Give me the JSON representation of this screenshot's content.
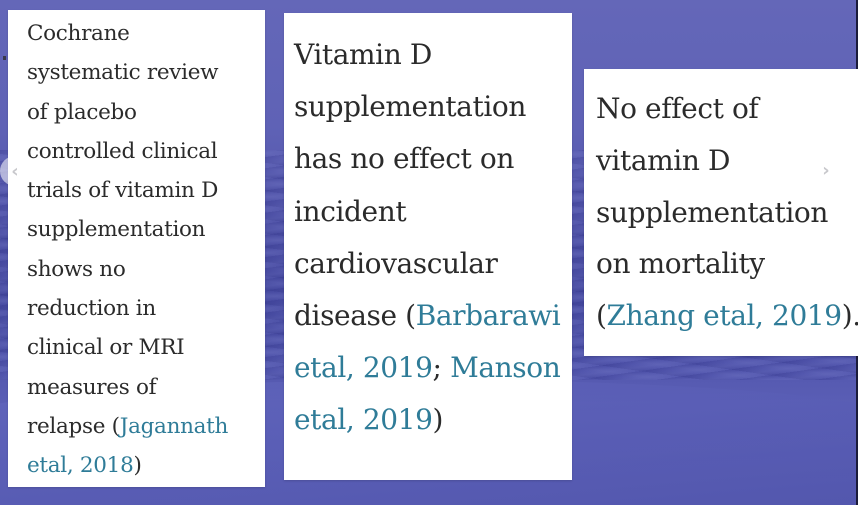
{
  "slides": {
    "cards": [
      {
        "lines": [
          "Cochrane",
          "systematic review",
          "of placebo",
          "controlled clinical",
          "trials of vitamin D",
          "supplementation",
          "shows no",
          "reduction in",
          "clinical or MRI",
          "measures of"
        ],
        "last_prefix": "relapse (",
        "citation_part1": "Jagannath",
        "citation_part2": "etal, 2018",
        "close": ")"
      },
      {
        "lines": [
          "Vitamin D",
          "supplementation",
          "has no effect on",
          "incident",
          "cardiovascular"
        ],
        "last_prefix": "disease (",
        "citation_1a": "Barbarawi",
        "citation_1b": "etal, 2019",
        "separator": "; ",
        "citation_2a": "Manson",
        "citation_2b": "etal, 2019",
        "close": ")"
      },
      {
        "lines": [
          "No effect of",
          "vitamin D",
          "supplementation",
          "on mortality"
        ],
        "open": "(",
        "citation": "Zhang etal, 2019",
        "close": ")."
      }
    ]
  },
  "navigation": {
    "prev_icon": "‹",
    "next_icon": "›"
  },
  "colors": {
    "background": "#5f62b6",
    "citation": "#2f7c98",
    "text": "#2b2b2b"
  }
}
